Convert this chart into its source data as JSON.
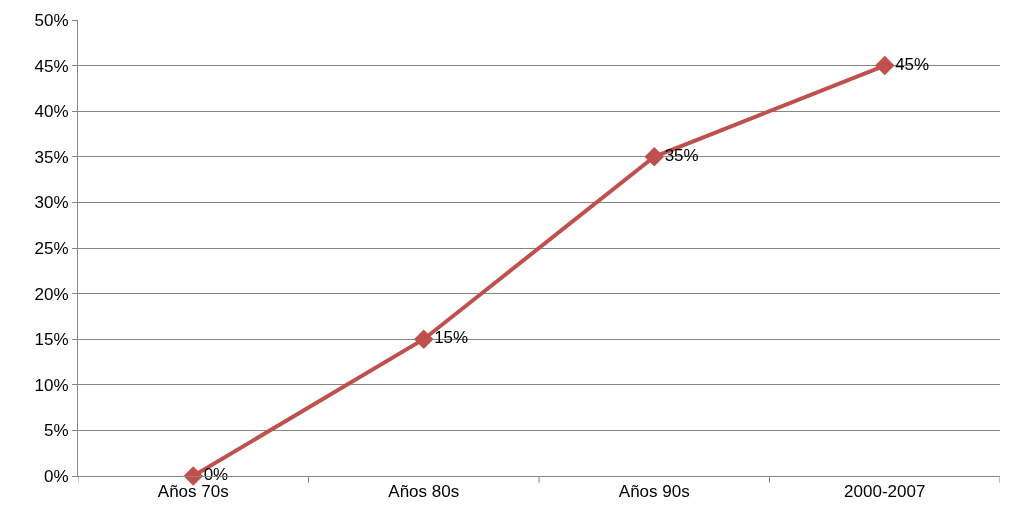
{
  "chart_data": {
    "type": "line",
    "categories": [
      "Años 70s",
      "Años 80s",
      "Años 90s",
      "2000-2007"
    ],
    "series": [
      {
        "color": "#c0504d",
        "values": [
          0,
          15,
          35,
          45
        ],
        "value_labels": [
          "0%",
          "15%",
          "35%",
          "45%"
        ]
      }
    ],
    "ylim": [
      0,
      50
    ],
    "yticks": [
      {
        "value": 0,
        "label": "0%"
      },
      {
        "value": 5,
        "label": "5%"
      },
      {
        "value": 10,
        "label": "10%"
      },
      {
        "value": 15,
        "label": "15%"
      },
      {
        "value": 20,
        "label": "20%"
      },
      {
        "value": 25,
        "label": "25%"
      },
      {
        "value": 30,
        "label": "30%"
      },
      {
        "value": 35,
        "label": "35%"
      },
      {
        "value": 40,
        "label": "40%"
      },
      {
        "value": 45,
        "label": "45%"
      },
      {
        "value": 50,
        "label": "50%"
      }
    ],
    "grid": "y",
    "legend": false,
    "marker": "diamond",
    "line_style": "solid"
  }
}
